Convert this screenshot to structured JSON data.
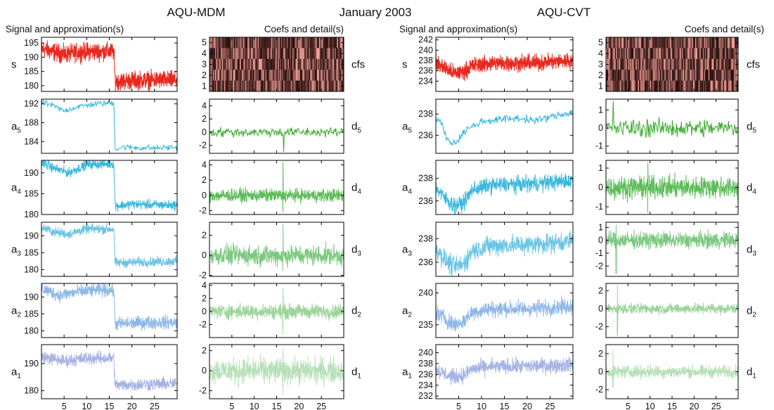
{
  "header": {
    "left_title": "AQU-MDM",
    "center_title": "January 2003",
    "right_title": "AQU-CVT",
    "left_sig_heading": "Signal and approximation(s)",
    "left_coef_heading": "Coefs and detail(s)",
    "right_sig_heading": "Signal and approximation(s)",
    "right_coef_heading": "Coefs and detail(s)"
  },
  "chart_data": [
    {
      "name": "AQU-MDM",
      "type": "line",
      "x_ticks": [
        5,
        10,
        15,
        20,
        25
      ],
      "xlim": [
        0,
        30
      ],
      "approx_color": "#3ab8dc",
      "signal_color": "#e8281e",
      "detail_color": "#3cb83c",
      "panels_signal": [
        {
          "label": "s",
          "sub": "",
          "ylim": [
            178,
            197
          ],
          "yticks": [
            180,
            185,
            190,
            195
          ],
          "color": "#e8281e",
          "levels": [
            [
              0,
              193
            ],
            [
              5,
              191
            ],
            [
              10,
              192
            ],
            [
              16,
              192
            ],
            [
              16.3,
              181.5
            ],
            [
              22,
              182
            ],
            [
              30,
              182
            ]
          ],
          "noise": 2.2,
          "kind": "signal"
        },
        {
          "label": "a",
          "sub": "5",
          "ylim": [
            181.5,
            193
          ],
          "yticks": [
            184,
            188,
            192
          ],
          "color": "#2cb4dc",
          "levels": [
            [
              0,
              192.3
            ],
            [
              2,
              191.8
            ],
            [
              5,
              190.5
            ],
            [
              8,
              191.4
            ],
            [
              12,
              192.0
            ],
            [
              16,
              192.2
            ],
            [
              16.3,
              182.4
            ],
            [
              18,
              182.8
            ],
            [
              25,
              182.6
            ],
            [
              30,
              182.8
            ]
          ],
          "noise": 0.45,
          "kind": "approx"
        },
        {
          "label": "a",
          "sub": "4",
          "ylim": [
            180,
            193
          ],
          "yticks": [
            180,
            185,
            190
          ],
          "color": "#3ab8dc",
          "levels": [
            [
              0,
              192.5
            ],
            [
              3,
              191
            ],
            [
              6,
              190
            ],
            [
              10,
              192
            ],
            [
              16,
              192.2
            ],
            [
              16.3,
              182
            ],
            [
              20,
              182.5
            ],
            [
              30,
              182.2
            ]
          ],
          "noise": 0.8,
          "kind": "approx"
        },
        {
          "label": "a",
          "sub": "3",
          "ylim": [
            178,
            194
          ],
          "yticks": [
            180,
            185,
            190
          ],
          "color": "#6cc4e4",
          "levels": [
            [
              0,
              192.5
            ],
            [
              3,
              191
            ],
            [
              6,
              190.5
            ],
            [
              10,
              192
            ],
            [
              16,
              192
            ],
            [
              16.3,
              182
            ],
            [
              22,
              182.2
            ],
            [
              30,
              182.5
            ]
          ],
          "noise": 1.0,
          "kind": "approx"
        },
        {
          "label": "a",
          "sub": "2",
          "ylim": [
            178,
            194
          ],
          "yticks": [
            180,
            185,
            190
          ],
          "color": "#8fb8e6",
          "levels": [
            [
              0,
              192.5
            ],
            [
              4,
              190.5
            ],
            [
              8,
              191.5
            ],
            [
              12,
              192
            ],
            [
              16,
              192
            ],
            [
              16.3,
              182
            ],
            [
              24,
              182.5
            ],
            [
              30,
              182.5
            ]
          ],
          "noise": 1.4,
          "kind": "approx"
        },
        {
          "label": "a",
          "sub": "1",
          "ylim": [
            177,
            197
          ],
          "yticks": [
            180,
            190
          ],
          "color": "#a6b4e4",
          "levels": [
            [
              0,
              192.5
            ],
            [
              5,
              191
            ],
            [
              10,
              192
            ],
            [
              16,
              192
            ],
            [
              16.3,
              182
            ],
            [
              25,
              182.5
            ],
            [
              30,
              182.5
            ]
          ],
          "noise": 1.7,
          "kind": "approx"
        }
      ],
      "panels_detail": [
        {
          "label": "cfs",
          "sub": "",
          "ylim": [
            0.5,
            5.5
          ],
          "yticks": [
            1,
            2,
            3,
            4,
            5
          ],
          "kind": "cfs"
        },
        {
          "label": "d",
          "sub": "5",
          "ylim": [
            -3.2,
            5
          ],
          "yticks": [
            -2,
            0,
            2,
            4
          ],
          "color": "#3caa2e",
          "noise": 0.5,
          "spike_x": 16.6,
          "spike_hi": 4.8,
          "spike_lo": -3.0,
          "kind": "detail"
        },
        {
          "label": "d",
          "sub": "4",
          "ylim": [
            -2.5,
            4.6
          ],
          "yticks": [
            -2,
            0,
            2,
            4
          ],
          "color": "#5cbc58",
          "noise": 0.6,
          "spike_x": 16.4,
          "spike_hi": 4.4,
          "spike_lo": -2.2,
          "kind": "detail"
        },
        {
          "label": "d",
          "sub": "3",
          "ylim": [
            -2.1,
            3.3
          ],
          "yticks": [
            -2,
            0,
            2
          ],
          "color": "#7cc880",
          "noise": 0.7,
          "spike_x": 16.4,
          "spike_hi": 3.1,
          "spike_lo": -1.6,
          "kind": "detail"
        },
        {
          "label": "d",
          "sub": "2",
          "ylim": [
            -4,
            4.3
          ],
          "yticks": [
            -2,
            0,
            2,
            4
          ],
          "color": "#9ed49c",
          "noise": 0.8,
          "spike_x": 16.4,
          "spike_hi": 3.5,
          "spike_lo": -3.5,
          "kind": "detail"
        },
        {
          "label": "d",
          "sub": "1",
          "ylim": [
            -2.8,
            2.6
          ],
          "yticks": [
            -2,
            0,
            2
          ],
          "color": "#b8e0b8",
          "noise": 0.9,
          "spike_x": 16.4,
          "spike_hi": 2.2,
          "spike_lo": -2.4,
          "kind": "detail"
        }
      ]
    },
    {
      "name": "AQU-CVT",
      "type": "line",
      "x_ticks": [
        5,
        10,
        15,
        20,
        25
      ],
      "xlim": [
        0,
        30
      ],
      "panels_signal": [
        {
          "label": "s",
          "sub": "",
          "ylim": [
            232,
            242.5
          ],
          "yticks": [
            234,
            236,
            238,
            240,
            242
          ],
          "color": "#e8281e",
          "levels": [
            [
              0,
              237.5
            ],
            [
              2,
              236.5
            ],
            [
              4,
              235.5
            ],
            [
              6,
              235.8
            ],
            [
              8,
              237
            ],
            [
              12,
              237.5
            ],
            [
              20,
              237.5
            ],
            [
              30,
              238
            ]
          ],
          "noise": 1.1,
          "kind": "signal"
        },
        {
          "label": "a",
          "sub": "5",
          "ylim": [
            234.3,
            239.4
          ],
          "yticks": [
            236,
            238
          ],
          "color": "#2cb4dc",
          "levels": [
            [
              0,
              237.3
            ],
            [
              1,
              237.6
            ],
            [
              2,
              236.0
            ],
            [
              3.5,
              235.2
            ],
            [
              5,
              235.6
            ],
            [
              6.5,
              236.5
            ],
            [
              8,
              236.8
            ],
            [
              10,
              237.3
            ],
            [
              14,
              237.5
            ],
            [
              18,
              237.6
            ],
            [
              22,
              237.4
            ],
            [
              26,
              237.8
            ],
            [
              30,
              238.2
            ]
          ],
          "noise": 0.25,
          "kind": "approx"
        },
        {
          "label": "a",
          "sub": "4",
          "ylim": [
            234.8,
            239.6
          ],
          "yticks": [
            236,
            238
          ],
          "color": "#3ab8dc",
          "levels": [
            [
              0,
              237.2
            ],
            [
              2,
              236.2
            ],
            [
              4,
              235.6
            ],
            [
              6,
              235.8
            ],
            [
              8,
              237
            ],
            [
              12,
              237.4
            ],
            [
              20,
              237.5
            ],
            [
              30,
              237.8
            ]
          ],
          "noise": 0.5,
          "kind": "approx"
        },
        {
          "label": "a",
          "sub": "3",
          "ylim": [
            234.8,
            239.4
          ],
          "yticks": [
            236,
            238
          ],
          "color": "#6cc4e4",
          "levels": [
            [
              0,
              237.2
            ],
            [
              2,
              236.2
            ],
            [
              4,
              235.6
            ],
            [
              6,
              235.8
            ],
            [
              8,
              237
            ],
            [
              12,
              237.4
            ],
            [
              20,
              237.5
            ],
            [
              30,
              237.8
            ]
          ],
          "noise": 0.6,
          "kind": "approx"
        },
        {
          "label": "a",
          "sub": "2",
          "ylim": [
            233,
            241.5
          ],
          "yticks": [
            235,
            240
          ],
          "color": "#8fb8e6",
          "levels": [
            [
              0,
              237
            ],
            [
              2,
              236
            ],
            [
              4,
              235
            ],
            [
              6,
              235.5
            ],
            [
              8,
              237
            ],
            [
              12,
              237.5
            ],
            [
              20,
              237.5
            ],
            [
              30,
              238
            ]
          ],
          "noise": 0.9,
          "kind": "approx"
        },
        {
          "label": "a",
          "sub": "1",
          "ylim": [
            231.5,
            241.5
          ],
          "yticks": [
            232,
            234,
            236,
            238,
            240
          ],
          "color": "#a6b4e4",
          "levels": [
            [
              0,
              237
            ],
            [
              2,
              236
            ],
            [
              4,
              235.5
            ],
            [
              6,
              235.8
            ],
            [
              8,
              237
            ],
            [
              12,
              237.4
            ],
            [
              20,
              237.5
            ],
            [
              30,
              237.8
            ]
          ],
          "noise": 1.0,
          "kind": "approx"
        }
      ],
      "panels_detail": [
        {
          "label": "cfs",
          "sub": "",
          "ylim": [
            0.5,
            5.5
          ],
          "yticks": [
            1,
            2,
            3,
            4,
            5
          ],
          "kind": "cfs"
        },
        {
          "label": "d",
          "sub": "5",
          "ylim": [
            -1.4,
            1.6
          ],
          "yticks": [
            -1,
            0,
            1
          ],
          "color": "#3caa2e",
          "noise": 0.35,
          "spike_x": 1.6,
          "spike_hi": 1.5,
          "spike_lo": -1.3,
          "kind": "detail"
        },
        {
          "label": "d",
          "sub": "4",
          "ylim": [
            -1.4,
            1.4
          ],
          "yticks": [
            -1,
            0,
            1
          ],
          "color": "#5cbc58",
          "noise": 0.4,
          "spike_x": 9.5,
          "spike_hi": 1.3,
          "spike_lo": -1.3,
          "kind": "detail"
        },
        {
          "label": "d",
          "sub": "3",
          "ylim": [
            -2.8,
            1.4
          ],
          "yticks": [
            -2,
            -1,
            0,
            1
          ],
          "color": "#7cc880",
          "noise": 0.45,
          "spike_x": 2.3,
          "spike_hi": 1.2,
          "spike_lo": -2.6,
          "kind": "detail"
        },
        {
          "label": "d",
          "sub": "2",
          "ylim": [
            -3.2,
            2.8
          ],
          "yticks": [
            -2,
            0,
            2
          ],
          "color": "#9ed49c",
          "noise": 0.4,
          "spike_x": 2.6,
          "spike_hi": 2.6,
          "spike_lo": -3.0,
          "kind": "detail"
        },
        {
          "label": "d",
          "sub": "1",
          "ylim": [
            -3.0,
            3.0
          ],
          "yticks": [
            -2,
            0,
            2
          ],
          "color": "#b8e0b8",
          "noise": 0.5,
          "spike_x": 1.6,
          "spike_hi": 2.4,
          "spike_lo": -1.8,
          "kind": "detail"
        }
      ]
    }
  ]
}
